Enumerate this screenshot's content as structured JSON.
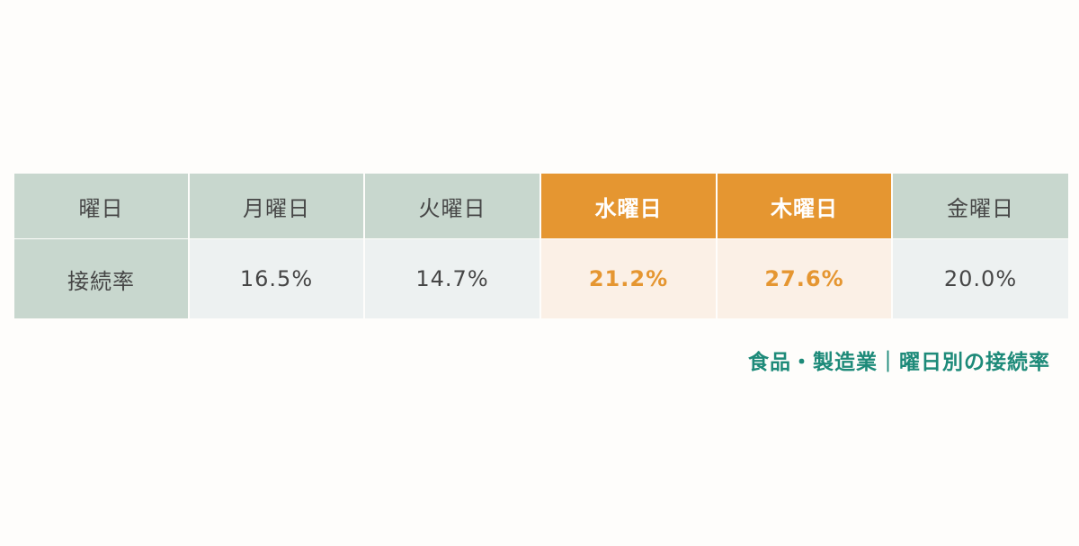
{
  "chart_data": {
    "type": "table",
    "title": "食品・製造業｜曜日別の接続率",
    "header_label": "曜日",
    "row_label": "接続率",
    "categories": [
      "月曜日",
      "火曜日",
      "水曜日",
      "木曜日",
      "金曜日"
    ],
    "display_values": [
      "16.5%",
      "14.7%",
      "21.2%",
      "27.6%",
      "20.0%"
    ],
    "values": [
      16.5,
      14.7,
      21.2,
      27.6,
      20.0
    ],
    "unit": "%",
    "highlighted": [
      "水曜日",
      "木曜日"
    ],
    "colors": {
      "highlight": "#e59631",
      "header_bg": "#c8d7ce",
      "caption": "#1d8a79"
    }
  }
}
